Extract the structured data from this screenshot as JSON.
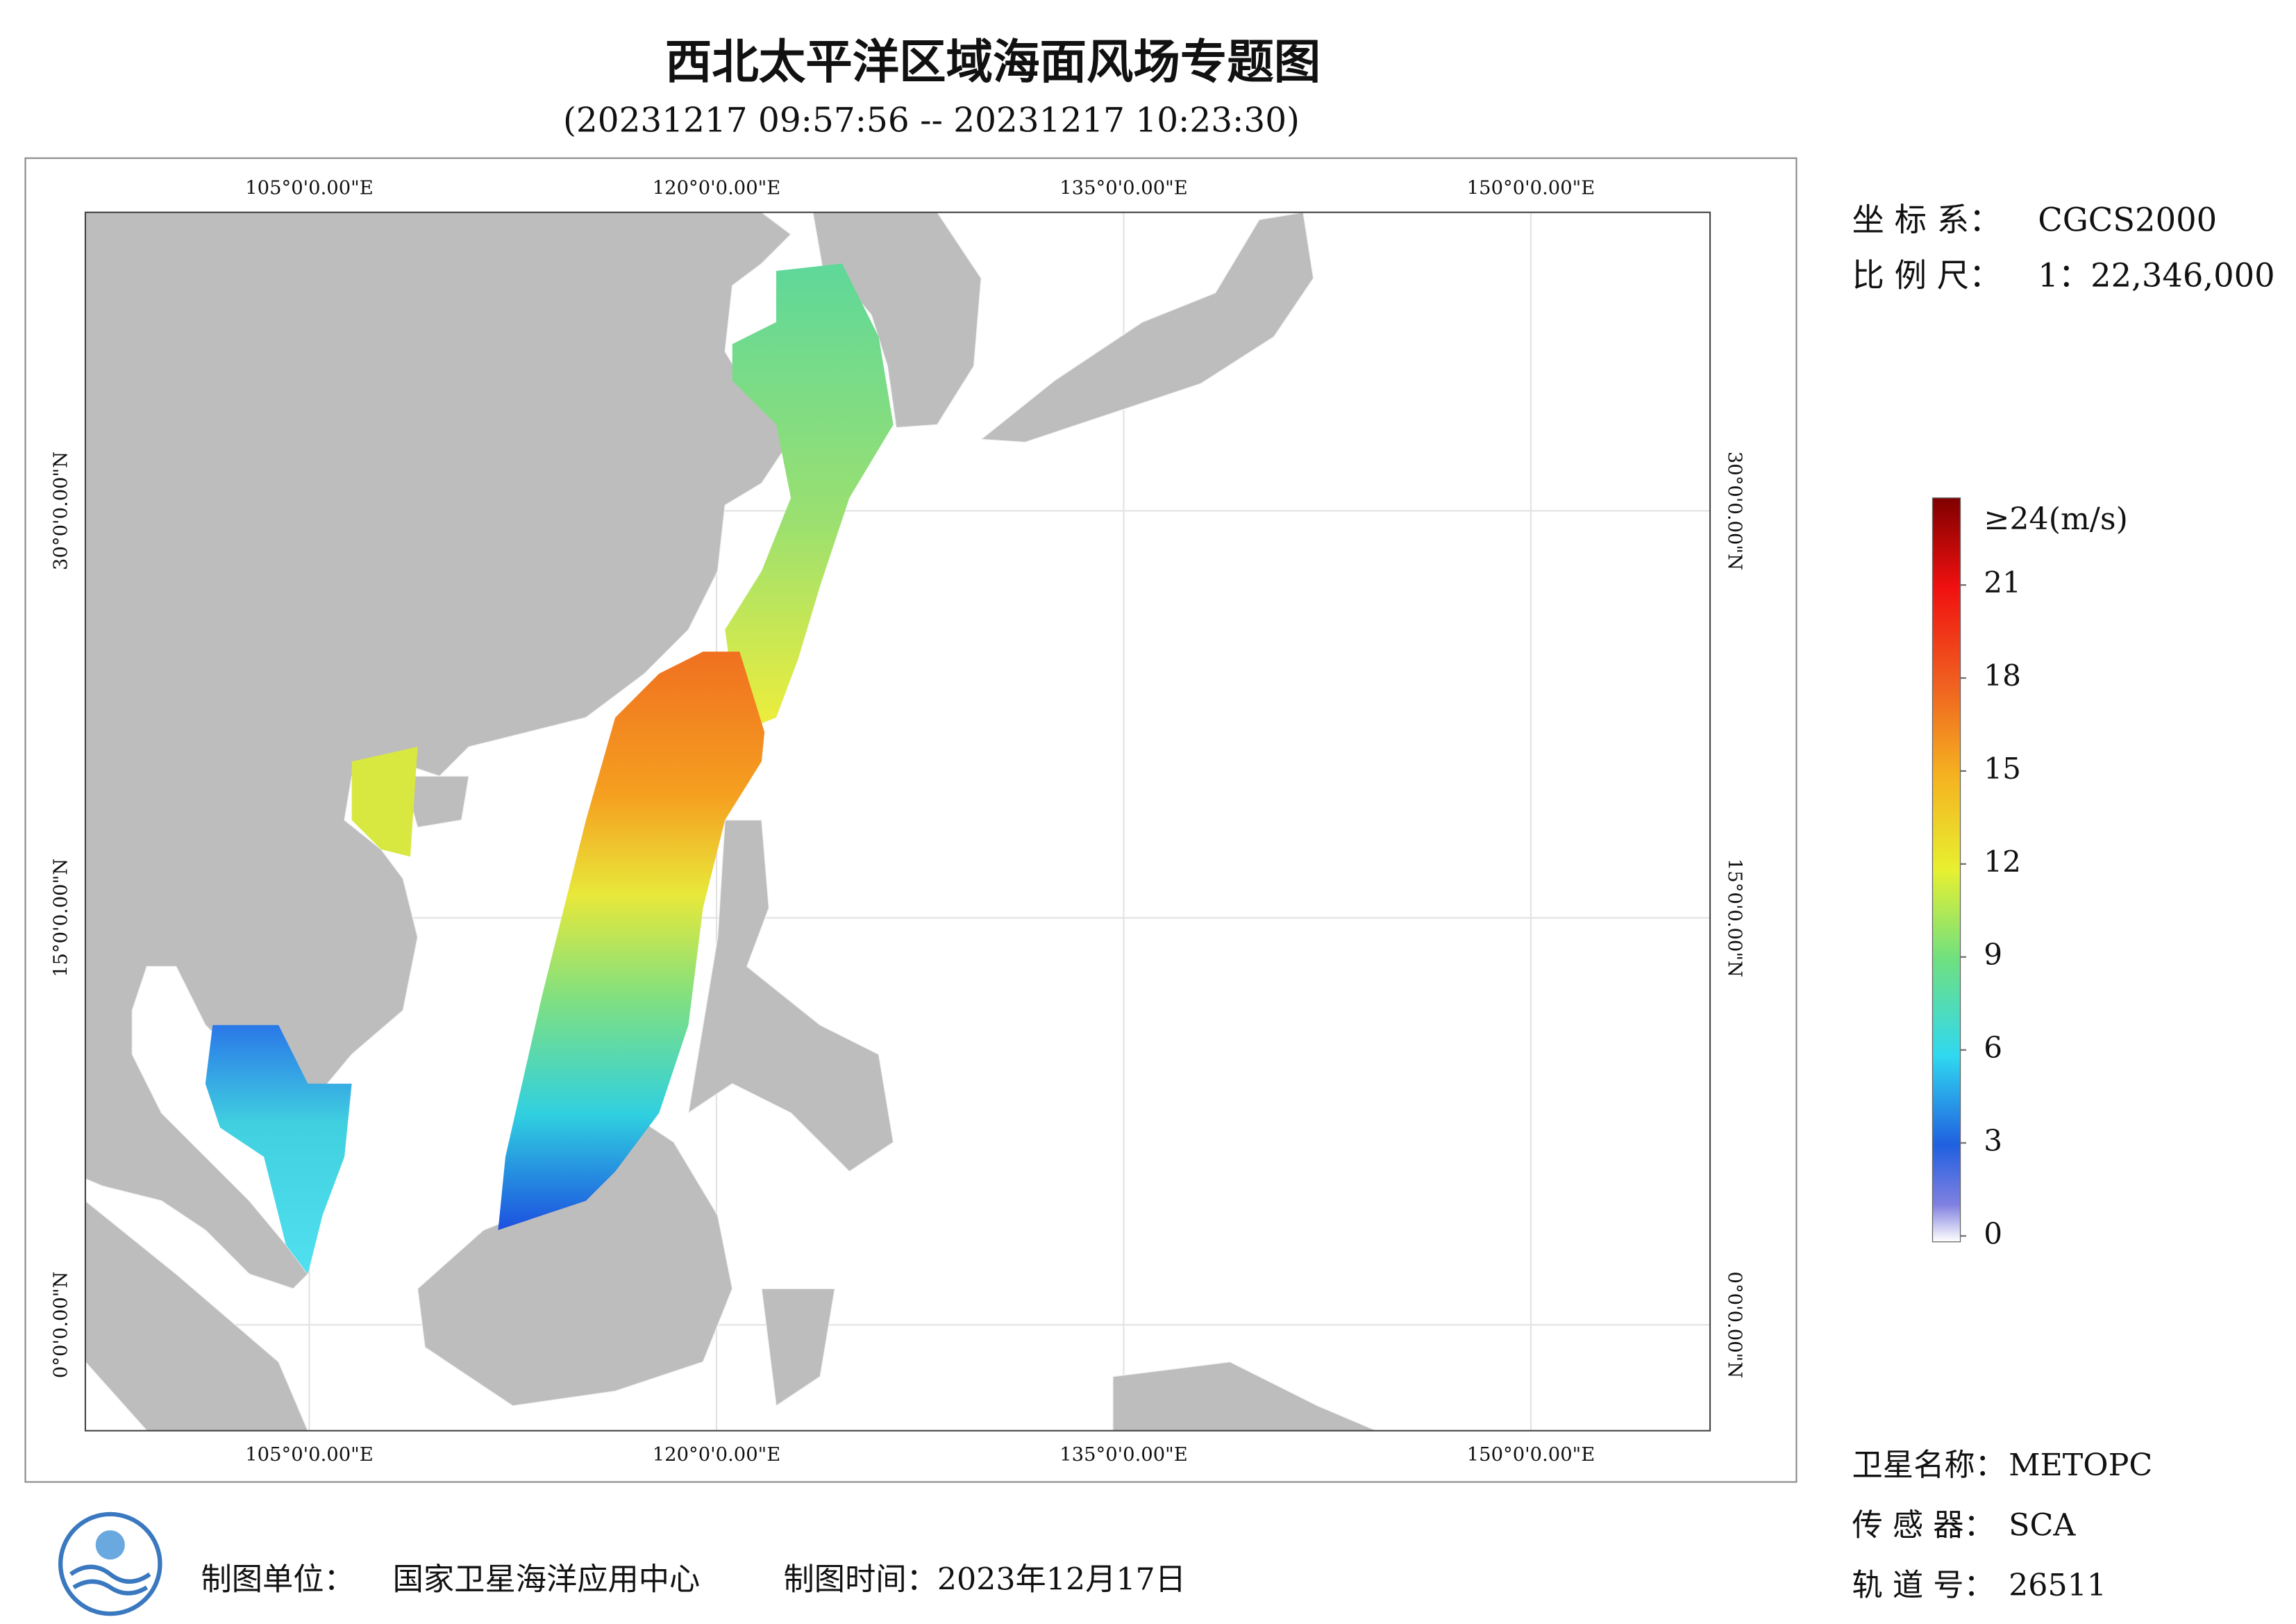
{
  "header": {
    "title": "西北太平洋区域海面风场专题图",
    "subtitle": "(20231217 09:57:56 -- 20231217 10:23:30)"
  },
  "map": {
    "xlim": [
      96.75,
      156.6
    ],
    "ylim": [
      -3.9,
      41.0
    ],
    "lon_ticks": [
      {
        "value": 105,
        "label": "105°0'0.00\"E"
      },
      {
        "value": 120,
        "label": "120°0'0.00\"E"
      },
      {
        "value": 135,
        "label": "135°0'0.00\"E"
      },
      {
        "value": 150,
        "label": "150°0'0.00\"E"
      }
    ],
    "lat_ticks": [
      {
        "value": 30,
        "label": "30°0'0.00\"N"
      },
      {
        "value": 15,
        "label": "15°0'0.00\"N"
      },
      {
        "value": 0,
        "label": "0°0'0.00\"N"
      }
    ]
  },
  "info": {
    "crs_label": "坐 标 系：",
    "crs": "CGCS2000",
    "scale_label": "比 例 尺：",
    "scale": "1：22,346,000"
  },
  "legend": {
    "range": [
      0,
      24
    ],
    "top_label": "≥24(m/s)",
    "ticks": [
      21,
      18,
      15,
      12,
      9,
      6,
      3,
      0
    ]
  },
  "satellite": {
    "name_label": "卫星名称：",
    "name": "METOPC",
    "sensor_label": "传 感 器：",
    "sensor": "SCA",
    "orbit_label": "轨 道 号：",
    "orbit": "26511"
  },
  "footer": {
    "unit_label": "制图单位：",
    "unit": "国家卫星海洋应用中心",
    "time": "制图时间：2023年12月17日"
  }
}
